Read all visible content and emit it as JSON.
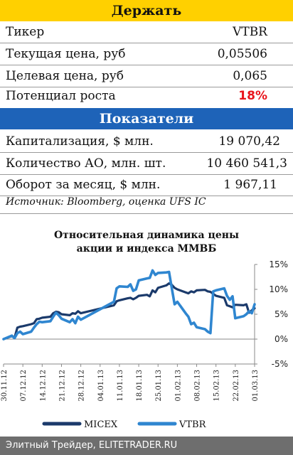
{
  "recommendation": {
    "title": "Держать"
  },
  "stock": [
    {
      "label": "Тикер",
      "value": "VTBR"
    },
    {
      "label": "Текущая цена, руб",
      "value": "0,05506"
    },
    {
      "label": "Целевая цена, руб",
      "value": "0,065"
    },
    {
      "label": "Потенциал роста",
      "value": "18%"
    }
  ],
  "metrics": {
    "title": "Показатели",
    "rows": [
      {
        "label": "Капитализация, $ млн.",
        "value": "19 070,42"
      },
      {
        "label": "Количество АО, млн. шт.",
        "value": "10 460 541,3"
      },
      {
        "label": "Оборот за месяц, $ млн.",
        "value": "1 967,11"
      }
    ]
  },
  "source": "Источник: Bloomberg, оценка UFS IC",
  "chart_title_line1": "Относительная динамика цены",
  "chart_title_line2": "акции и индекса ММВБ",
  "footer": "Элитный Трейдер, ELITETRADER.RU",
  "colors": {
    "micex": "#1b3a6b",
    "vtbr": "#2f86d0",
    "upside": "#e8141c",
    "hold_banner": "#ffd000",
    "metrics_banner": "#1e63b8"
  },
  "chart_data": {
    "type": "line",
    "title": "Относительная динамика цены акции и индекса ММВБ",
    "x_ticks": [
      "30.11.12",
      "07.12.12",
      "14.12.12",
      "21.12.12",
      "28.12.12",
      "04.01.13",
      "11.01.13",
      "18.01.13",
      "25.01.13",
      "01.02.13",
      "08.02.13",
      "15.02.13",
      "22.02.13",
      "01.03.13"
    ],
    "y_ticks": [
      "-5%",
      "0%",
      "5%",
      "10%",
      "15%"
    ],
    "ylim": [
      -5,
      15
    ],
    "y_axis_position": "right",
    "grid": false,
    "legend_position": "bottom",
    "x_start": "2012-11-30",
    "x_end": "2013-03-01",
    "series": [
      {
        "name": "MICEX",
        "points": [
          [
            "2012-11-30",
            0
          ],
          [
            "2012-12-03",
            0.6
          ],
          [
            "2012-12-04",
            0.3
          ],
          [
            "2012-12-05",
            2.3
          ],
          [
            "2012-12-06",
            2.5
          ],
          [
            "2012-12-07",
            2.6
          ],
          [
            "2012-12-10",
            3
          ],
          [
            "2012-12-11",
            3.2
          ],
          [
            "2012-12-12",
            4
          ],
          [
            "2012-12-13",
            4.1
          ],
          [
            "2012-12-14",
            4.3
          ],
          [
            "2012-12-17",
            4.5
          ],
          [
            "2012-12-18",
            5.2
          ],
          [
            "2012-12-19",
            5.5
          ],
          [
            "2012-12-20",
            5.4
          ],
          [
            "2012-12-21",
            5
          ],
          [
            "2012-12-24",
            4.8
          ],
          [
            "2012-12-25",
            5.2
          ],
          [
            "2012-12-26",
            5.1
          ],
          [
            "2012-12-27",
            5.6
          ],
          [
            "2012-12-28",
            5.2
          ],
          [
            "2013-01-09",
            6.8
          ],
          [
            "2013-01-10",
            7.6
          ],
          [
            "2013-01-11",
            7.8
          ],
          [
            "2013-01-14",
            8.2
          ],
          [
            "2013-01-15",
            8.3
          ],
          [
            "2013-01-16",
            8
          ],
          [
            "2013-01-17",
            8.3
          ],
          [
            "2013-01-18",
            8.7
          ],
          [
            "2013-01-21",
            8.9
          ],
          [
            "2013-01-22",
            8.6
          ],
          [
            "2013-01-23",
            9.8
          ],
          [
            "2013-01-24",
            9.4
          ],
          [
            "2013-01-25",
            10.3
          ],
          [
            "2013-01-28",
            10.8
          ],
          [
            "2013-01-29",
            11.2
          ],
          [
            "2013-01-30",
            10.9
          ],
          [
            "2013-01-31",
            10.3
          ],
          [
            "2013-02-01",
            10
          ],
          [
            "2013-02-04",
            9.4
          ],
          [
            "2013-02-05",
            9.2
          ],
          [
            "2013-02-06",
            9.6
          ],
          [
            "2013-02-07",
            9.4
          ],
          [
            "2013-02-08",
            9.8
          ],
          [
            "2013-02-11",
            9.9
          ],
          [
            "2013-02-12",
            9.6
          ],
          [
            "2013-02-13",
            9.5
          ],
          [
            "2013-02-14",
            9.1
          ],
          [
            "2013-02-15",
            8.7
          ],
          [
            "2013-02-18",
            8.3
          ],
          [
            "2013-02-19",
            6.8
          ],
          [
            "2013-02-20",
            6.6
          ],
          [
            "2013-02-21",
            6.4
          ],
          [
            "2013-02-22",
            6.9
          ],
          [
            "2013-02-25",
            6.8
          ],
          [
            "2013-02-26",
            7
          ],
          [
            "2013-02-27",
            5.3
          ],
          [
            "2013-02-28",
            5.8
          ],
          [
            "2013-03-01",
            6.2
          ]
        ]
      },
      {
        "name": "VTBR",
        "points": [
          [
            "2012-11-30",
            0
          ],
          [
            "2012-12-03",
            0.7
          ],
          [
            "2012-12-04",
            0.2
          ],
          [
            "2012-12-05",
            1.2
          ],
          [
            "2012-12-06",
            1.5
          ],
          [
            "2012-12-07",
            1
          ],
          [
            "2012-12-10",
            1.5
          ],
          [
            "2012-12-11",
            2.3
          ],
          [
            "2012-12-12",
            3
          ],
          [
            "2012-12-13",
            3.5
          ],
          [
            "2012-12-14",
            3.4
          ],
          [
            "2012-12-17",
            3.6
          ],
          [
            "2012-12-18",
            4.5
          ],
          [
            "2012-12-19",
            5.3
          ],
          [
            "2012-12-20",
            4.8
          ],
          [
            "2012-12-21",
            4.1
          ],
          [
            "2012-12-24",
            3.4
          ],
          [
            "2012-12-25",
            4
          ],
          [
            "2012-12-26",
            3.2
          ],
          [
            "2012-12-27",
            4.5
          ],
          [
            "2012-12-28",
            3.9
          ],
          [
            "2013-01-09",
            7.5
          ],
          [
            "2013-01-10",
            10.2
          ],
          [
            "2013-01-11",
            10.6
          ],
          [
            "2013-01-14",
            10.5
          ],
          [
            "2013-01-15",
            11
          ],
          [
            "2013-01-16",
            9.7
          ],
          [
            "2013-01-17",
            10
          ],
          [
            "2013-01-18",
            11.8
          ],
          [
            "2013-01-21",
            12.2
          ],
          [
            "2013-01-22",
            12.3
          ],
          [
            "2013-01-23",
            13.8
          ],
          [
            "2013-01-24",
            12.9
          ],
          [
            "2013-01-25",
            13.3
          ],
          [
            "2013-01-28",
            13.4
          ],
          [
            "2013-01-29",
            13.5
          ],
          [
            "2013-01-30",
            10.2
          ],
          [
            "2013-01-31",
            7
          ],
          [
            "2013-02-01",
            7.5
          ],
          [
            "2013-02-04",
            5.2
          ],
          [
            "2013-02-05",
            4.5
          ],
          [
            "2013-02-06",
            3
          ],
          [
            "2013-02-07",
            3.3
          ],
          [
            "2013-02-08",
            2.4
          ],
          [
            "2013-02-11",
            2
          ],
          [
            "2013-02-12",
            1.5
          ],
          [
            "2013-02-13",
            1.2
          ],
          [
            "2013-02-14",
            9.6
          ],
          [
            "2013-02-15",
            9.8
          ],
          [
            "2013-02-18",
            10.2
          ],
          [
            "2013-02-19",
            8.7
          ],
          [
            "2013-02-20",
            7.9
          ],
          [
            "2013-02-21",
            8.6
          ],
          [
            "2013-02-22",
            4.2
          ],
          [
            "2013-02-25",
            4.6
          ],
          [
            "2013-02-26",
            5
          ],
          [
            "2013-02-27",
            5.6
          ],
          [
            "2013-02-28",
            5.2
          ],
          [
            "2013-03-01",
            7
          ]
        ]
      }
    ]
  }
}
